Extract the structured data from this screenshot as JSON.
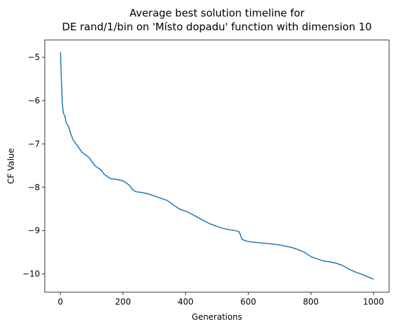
{
  "chart_data": {
    "type": "line",
    "title_lines": [
      "Average best solution timeline for",
      "DE rand/1/bin on 'Místo dopadu' function with dimension 10"
    ],
    "xlabel": "Generations",
    "ylabel": "CF Value",
    "xlim": [
      -50,
      1050
    ],
    "ylim": [
      -10.42,
      -4.6
    ],
    "xticks": [
      0,
      200,
      400,
      600,
      800,
      1000
    ],
    "yticks": [
      -10,
      -9,
      -8,
      -7,
      -6,
      -5
    ],
    "grid": false,
    "color": "#1f77b4",
    "series": [
      {
        "x": [
          0,
          2,
          4,
          6,
          8,
          10,
          14,
          18,
          22,
          26,
          30,
          35,
          40,
          45,
          50,
          55,
          60,
          70,
          80,
          90,
          100,
          110,
          120,
          130,
          140,
          150,
          160,
          180,
          200,
          220,
          230,
          240,
          260,
          280,
          300,
          320,
          340,
          360,
          380,
          400,
          420,
          440,
          460,
          480,
          500,
          520,
          540,
          560,
          570,
          575,
          580,
          590,
          600,
          620,
          650,
          680,
          700,
          720,
          740,
          760,
          780,
          800,
          820,
          840,
          860,
          880,
          900,
          920,
          940,
          960,
          980,
          1000
        ],
        "y": [
          -4.88,
          -5.3,
          -5.65,
          -6.05,
          -6.2,
          -6.3,
          -6.35,
          -6.5,
          -6.55,
          -6.6,
          -6.7,
          -6.8,
          -6.9,
          -6.95,
          -7.0,
          -7.05,
          -7.1,
          -7.2,
          -7.25,
          -7.3,
          -7.4,
          -7.5,
          -7.55,
          -7.6,
          -7.7,
          -7.75,
          -7.8,
          -7.82,
          -7.85,
          -7.95,
          -8.05,
          -8.1,
          -8.12,
          -8.15,
          -8.2,
          -8.25,
          -8.3,
          -8.4,
          -8.5,
          -8.55,
          -8.62,
          -8.7,
          -8.78,
          -8.85,
          -8.9,
          -8.95,
          -8.98,
          -9.0,
          -9.02,
          -9.1,
          -9.2,
          -9.23,
          -9.25,
          -9.27,
          -9.29,
          -9.31,
          -9.33,
          -9.36,
          -9.39,
          -9.44,
          -9.5,
          -9.6,
          -9.65,
          -9.7,
          -9.72,
          -9.75,
          -9.8,
          -9.88,
          -9.95,
          -10.0,
          -10.06,
          -10.12
        ]
      }
    ]
  }
}
